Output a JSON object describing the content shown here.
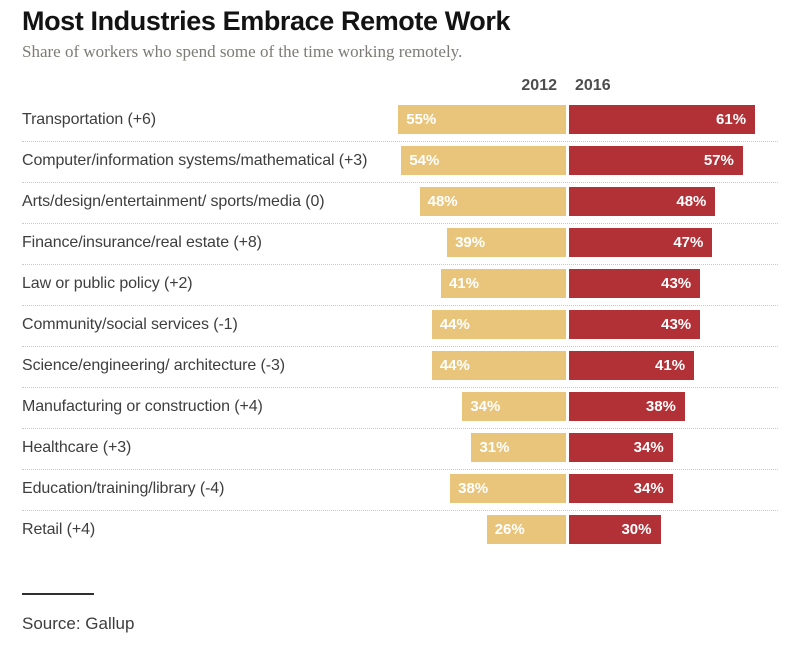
{
  "header": {
    "title": "Most Industries Embrace Remote Work",
    "subtitle": "Share of workers who spend some of the time working remotely."
  },
  "column_headers": {
    "year2012": "2012",
    "year2016": "2016"
  },
  "source": "Source: Gallup",
  "colors": {
    "bar2012": "#e9c57c",
    "bar2016": "#b13137",
    "value_label": "#ffffff"
  },
  "chart_data": {
    "type": "bar",
    "orientation": "horizontal-diverging",
    "title": "Most Industries Embrace Remote Work",
    "subtitle": "Share of workers who spend some of the time working remotely.",
    "unit": "%",
    "xlim": [
      0,
      65
    ],
    "grid": false,
    "legend_position": "top-center",
    "series_names": [
      "2012",
      "2016"
    ],
    "rows": [
      {
        "label": "Transportation (+6)",
        "v2012": 55,
        "v2016": 61,
        "text2012": "55%",
        "text2016": "61%"
      },
      {
        "label": "Computer/information systems/mathematical (+3)",
        "v2012": 54,
        "v2016": 57,
        "text2012": "54%",
        "text2016": "57%"
      },
      {
        "label": "Arts/design/entertainment/ sports/media (0)",
        "v2012": 48,
        "v2016": 48,
        "text2012": "48%",
        "text2016": "48%"
      },
      {
        "label": "Finance/insurance/real estate (+8)",
        "v2012": 39,
        "v2016": 47,
        "text2012": "39%",
        "text2016": "47%"
      },
      {
        "label": "Law or public policy (+2)",
        "v2012": 41,
        "v2016": 43,
        "text2012": "41%",
        "text2016": "43%"
      },
      {
        "label": "Community/social services (-1)",
        "v2012": 44,
        "v2016": 43,
        "text2012": "44%",
        "text2016": "43%"
      },
      {
        "label": "Science/engineering/ architecture (-3)",
        "v2012": 44,
        "v2016": 41,
        "text2012": "44%",
        "text2016": "41%"
      },
      {
        "label": "Manufacturing or construction (+4)",
        "v2012": 34,
        "v2016": 38,
        "text2012": "34%",
        "text2016": "38%"
      },
      {
        "label": "Healthcare (+3)",
        "v2012": 31,
        "v2016": 34,
        "text2012": "31%",
        "text2016": "34%"
      },
      {
        "label": "Education/training/library (-4)",
        "v2012": 38,
        "v2016": 34,
        "text2012": "38%",
        "text2016": "34%"
      },
      {
        "label": "Retail (+4)",
        "v2012": 26,
        "v2016": 30,
        "text2012": "26%",
        "text2016": "30%"
      }
    ]
  }
}
